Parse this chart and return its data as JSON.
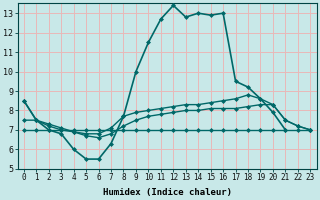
{
  "xlabel": "Humidex (Indice chaleur)",
  "xlim": [
    -0.5,
    23.5
  ],
  "ylim": [
    5,
    13.5
  ],
  "yticks": [
    5,
    6,
    7,
    8,
    9,
    10,
    11,
    12,
    13
  ],
  "xticks": [
    0,
    1,
    2,
    3,
    4,
    5,
    6,
    7,
    8,
    9,
    10,
    11,
    12,
    13,
    14,
    15,
    16,
    17,
    18,
    19,
    20,
    21,
    22,
    23
  ],
  "bg_outer": "#c8e8e8",
  "bg_inner": "#c8e8e8",
  "grid_color": "#e8b8b8",
  "line_color": "#006868",
  "line1_x": [
    0,
    1,
    2,
    3,
    4,
    5,
    6,
    7,
    8,
    9,
    10,
    11,
    12,
    13,
    14,
    15,
    16,
    17,
    18,
    19,
    20,
    21
  ],
  "line1_y": [
    8.5,
    7.5,
    7.0,
    6.8,
    6.0,
    5.5,
    5.5,
    6.3,
    7.7,
    10.0,
    11.5,
    12.7,
    13.4,
    12.8,
    13.0,
    12.9,
    13.0,
    9.5,
    9.2,
    8.6,
    7.9,
    7.0
  ],
  "line2_x": [
    0,
    1,
    2,
    3,
    4,
    5,
    6,
    7,
    8,
    9,
    10,
    11,
    12,
    13,
    14,
    15,
    16,
    17,
    18,
    19,
    20,
    21,
    22,
    23
  ],
  "line2_y": [
    8.5,
    7.5,
    7.2,
    7.0,
    6.9,
    6.8,
    6.8,
    7.1,
    7.7,
    7.9,
    8.0,
    8.1,
    8.2,
    8.3,
    8.3,
    8.4,
    8.5,
    8.6,
    8.8,
    8.6,
    8.3,
    7.5,
    7.2,
    7.0
  ],
  "line3_x": [
    0,
    1,
    2,
    3,
    4,
    5,
    6,
    7,
    8,
    9,
    10,
    11,
    12,
    13,
    14,
    15,
    16,
    17,
    18,
    19,
    20,
    21,
    22,
    23
  ],
  "line3_y": [
    7.0,
    7.0,
    7.0,
    7.0,
    7.0,
    7.0,
    7.0,
    7.0,
    7.0,
    7.0,
    7.0,
    7.0,
    7.0,
    7.0,
    7.0,
    7.0,
    7.0,
    7.0,
    7.0,
    7.0,
    7.0,
    7.0,
    7.0,
    7.0
  ],
  "line4_x": [
    0,
    1,
    2,
    3,
    4,
    5,
    6,
    7,
    8,
    9,
    10,
    11,
    12,
    13,
    14,
    15,
    16,
    17,
    18,
    19,
    20,
    21,
    22,
    23
  ],
  "line4_y": [
    7.5,
    7.5,
    7.3,
    7.1,
    6.9,
    6.7,
    6.6,
    6.8,
    7.2,
    7.5,
    7.7,
    7.8,
    7.9,
    8.0,
    8.0,
    8.1,
    8.1,
    8.1,
    8.2,
    8.3,
    8.3,
    7.5,
    7.2,
    7.0
  ],
  "tick_fontsize": 5.5,
  "xlabel_fontsize": 6.5,
  "marker": "D",
  "markersize": 2.0,
  "linewidth_main": 1.2,
  "linewidth_other": 1.0
}
